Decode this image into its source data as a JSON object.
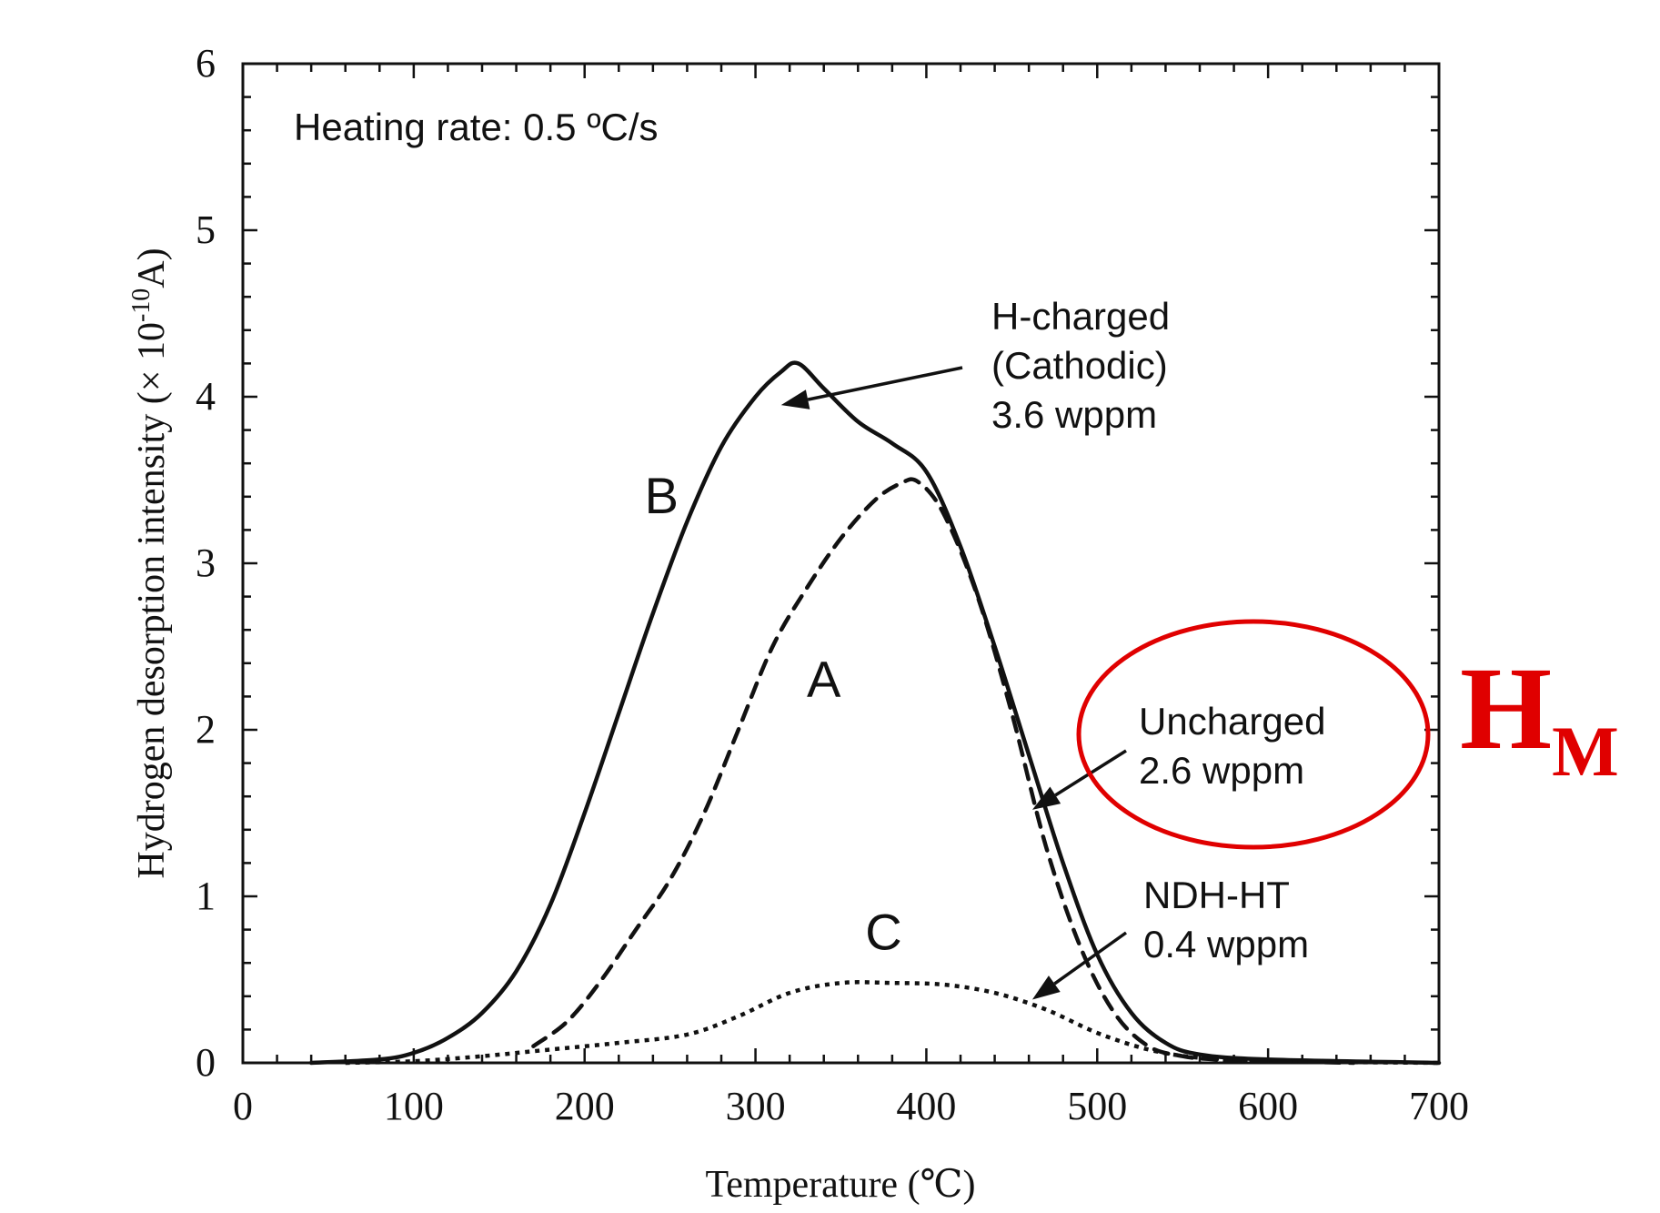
{
  "chart_data": {
    "type": "line",
    "title": "",
    "xlabel": "Temperature (℃)",
    "ylabel": "Hydrogen desorption intensity (× 10",
    "ylabel_exp": "-10",
    "ylabel_unit": "A)",
    "xlim": [
      0,
      700
    ],
    "ylim": [
      0,
      6
    ],
    "x_ticks": [
      "0",
      "100",
      "200",
      "300",
      "400",
      "500",
      "600",
      "700"
    ],
    "y_ticks": [
      "0",
      "1",
      "2",
      "3",
      "4",
      "5",
      "6"
    ],
    "grid": false,
    "series": [
      {
        "label": "B",
        "style": "solid",
        "x": [
          40,
          80,
          100,
          120,
          140,
          160,
          180,
          200,
          220,
          240,
          260,
          280,
          300,
          315,
          325,
          340,
          360,
          380,
          400,
          420,
          440,
          460,
          480,
          500,
          520,
          540,
          560,
          600,
          700
        ],
        "y": [
          0.0,
          0.02,
          0.06,
          0.15,
          0.3,
          0.55,
          0.95,
          1.5,
          2.1,
          2.7,
          3.25,
          3.7,
          4.0,
          4.15,
          4.2,
          4.05,
          3.85,
          3.72,
          3.55,
          3.1,
          2.5,
          1.85,
          1.2,
          0.65,
          0.3,
          0.12,
          0.05,
          0.02,
          0.0
        ]
      },
      {
        "label": "A",
        "style": "dashed",
        "x": [
          170,
          190,
          210,
          230,
          250,
          270,
          290,
          310,
          330,
          350,
          370,
          385,
          395,
          410,
          430,
          450,
          470,
          490,
          510,
          530,
          550,
          570,
          600,
          650
        ],
        "y": [
          0.1,
          0.25,
          0.5,
          0.8,
          1.1,
          1.5,
          2.0,
          2.5,
          2.85,
          3.15,
          3.38,
          3.48,
          3.49,
          3.3,
          2.8,
          2.1,
          1.3,
          0.7,
          0.3,
          0.1,
          0.04,
          0.02,
          0.01,
          0.0
        ]
      },
      {
        "label": "C",
        "style": "dotted",
        "x": [
          60,
          100,
          140,
          180,
          220,
          260,
          290,
          320,
          350,
          380,
          410,
          440,
          470,
          500,
          530,
          560,
          600,
          700
        ],
        "y": [
          0.0,
          0.01,
          0.04,
          0.08,
          0.12,
          0.17,
          0.28,
          0.42,
          0.48,
          0.48,
          0.47,
          0.42,
          0.32,
          0.18,
          0.08,
          0.03,
          0.01,
          0.0
        ]
      }
    ],
    "annotations": [
      {
        "lines": [
          "Heating rate: 0.5 ºC/s"
        ]
      },
      {
        "lines": [
          "H-charged",
          "(Cathodic)",
          "3.6 wppm"
        ],
        "arrow_to": [
          315,
          3.95
        ]
      },
      {
        "lines": [
          "Uncharged",
          "2.6 wppm"
        ],
        "arrow_to": [
          462,
          1.52
        ]
      },
      {
        "lines": [
          "NDH-HT",
          "0.4 wppm"
        ],
        "arrow_to": [
          462,
          0.38
        ]
      }
    ],
    "curve_labels": [
      {
        "text": "B",
        "x": 245,
        "y": 3.3
      },
      {
        "text": "A",
        "x": 340,
        "y": 2.2
      },
      {
        "text": "C",
        "x": 375,
        "y": 0.68
      }
    ],
    "overlay_label": {
      "main": "H",
      "sub": "M"
    },
    "colors": {
      "curves": "#111111",
      "highlight": "#e00000"
    }
  }
}
